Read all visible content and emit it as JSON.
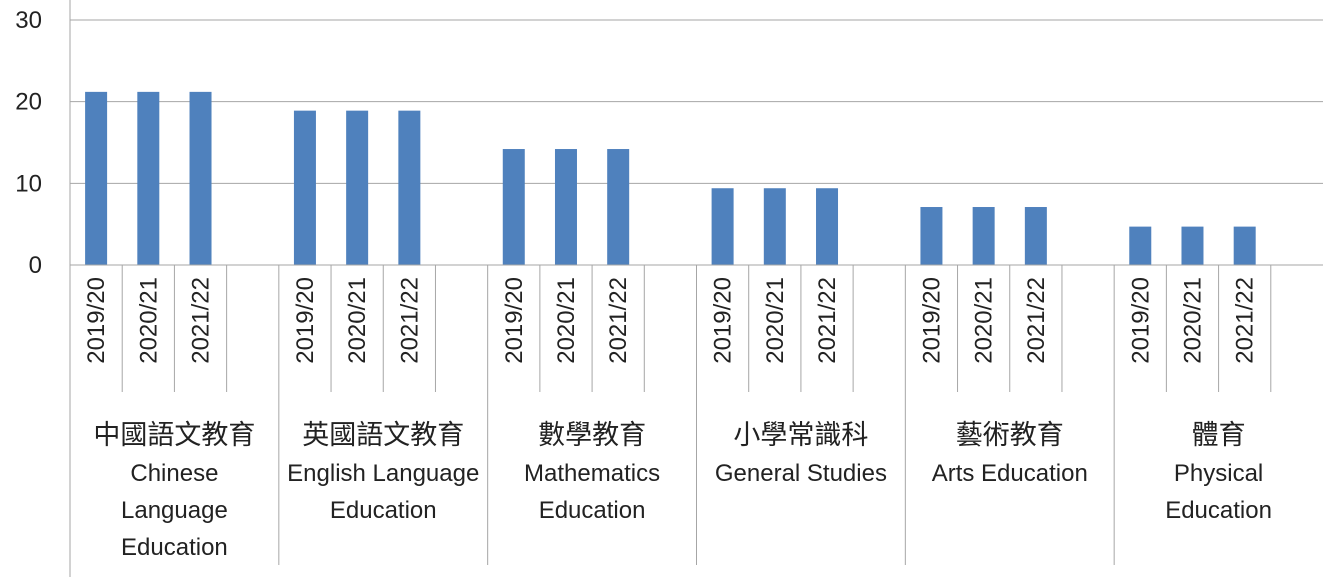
{
  "chart_data": {
    "type": "bar",
    "title": "",
    "xlabel": "",
    "ylabel": "",
    "ylim": [
      0,
      30
    ],
    "yticks": [
      "0",
      "10",
      "20",
      "30"
    ],
    "grid": true,
    "legend": "none",
    "bar_color": "#4F81BD",
    "years": [
      "2019/20",
      "2020/21",
      "2021/22"
    ],
    "groups": [
      {
        "name_cn": "中國語文教育",
        "name_en": [
          "Chinese",
          "Language",
          "Education"
        ],
        "values": [
          21.2,
          21.2,
          21.2
        ]
      },
      {
        "name_cn": "英國語文教育",
        "name_en": [
          "English Language",
          "Education"
        ],
        "values": [
          18.9,
          18.9,
          18.9
        ]
      },
      {
        "name_cn": "數學教育",
        "name_en": [
          "Mathematics",
          "Education"
        ],
        "values": [
          14.2,
          14.2,
          14.2
        ]
      },
      {
        "name_cn": "小學常識科",
        "name_en": [
          "General Studies"
        ],
        "values": [
          9.4,
          9.4,
          9.4
        ]
      },
      {
        "name_cn": "藝術教育",
        "name_en": [
          "Arts Education"
        ],
        "values": [
          7.1,
          7.1,
          7.1
        ]
      },
      {
        "name_cn": "體育",
        "name_en": [
          "Physical",
          "Education"
        ],
        "values": [
          4.7,
          4.7,
          4.7
        ]
      }
    ]
  }
}
